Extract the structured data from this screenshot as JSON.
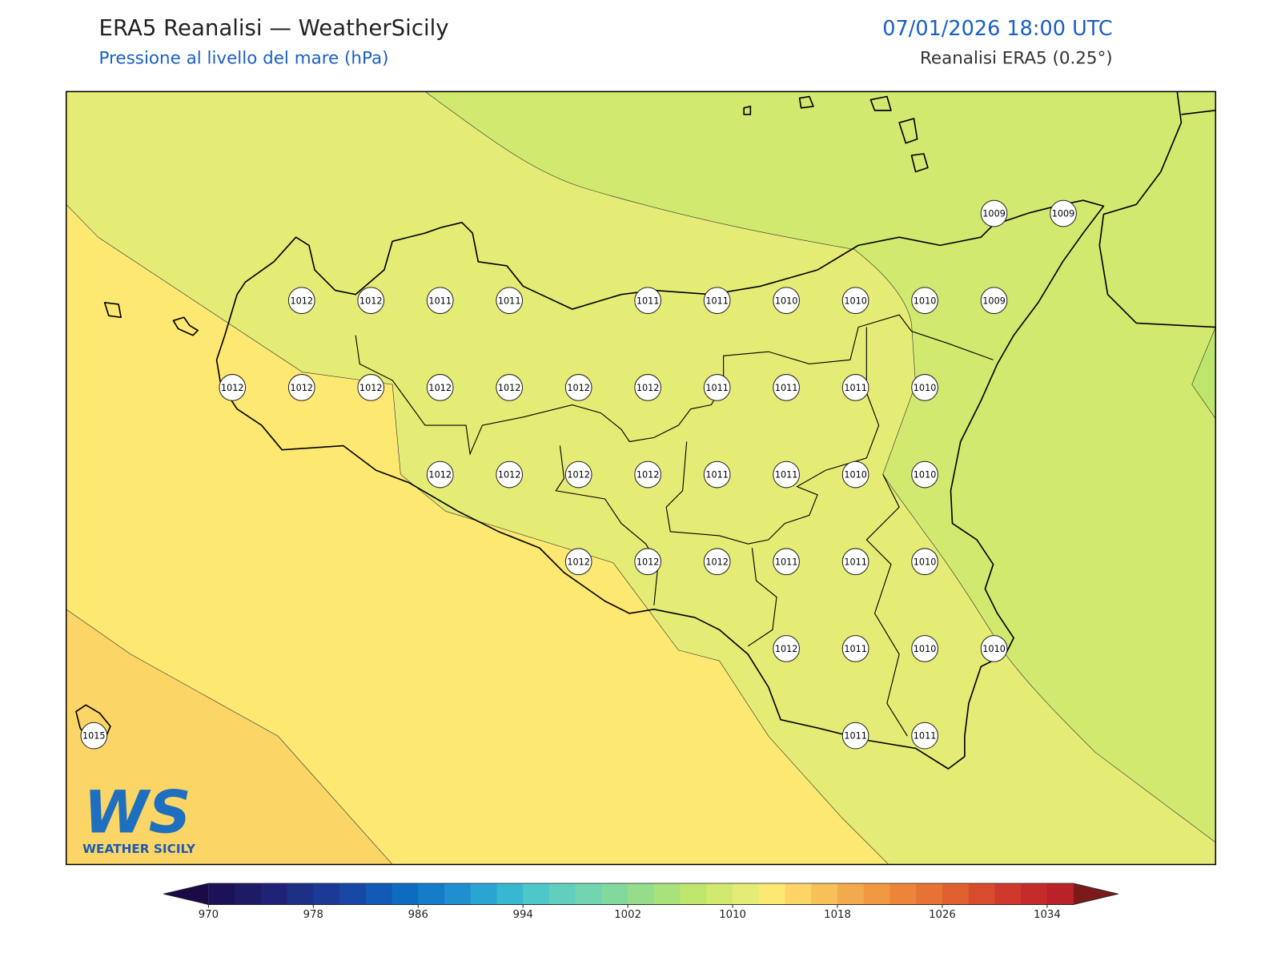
{
  "header": {
    "title": "ERA5 Reanalisi — WeatherSicily",
    "subtitle": "Pressione al livello del mare (hPa)",
    "datetime": "07/01/2026 18:00 UTC",
    "source": "Reanalisi ERA5 (0.25°)"
  },
  "logo": {
    "mark": "WS",
    "text": "WEATHER SICILY"
  },
  "map": {
    "xlim": [
      11.9,
      16.05
    ],
    "ylim": [
      36.38,
      38.6
    ],
    "points": [
      {
        "lon": 15.25,
        "lat": 38.25,
        "value": 1009
      },
      {
        "lon": 15.5,
        "lat": 38.25,
        "value": 1009
      },
      {
        "lon": 12.75,
        "lat": 38.0,
        "value": 1012
      },
      {
        "lon": 13.0,
        "lat": 38.0,
        "value": 1012
      },
      {
        "lon": 13.25,
        "lat": 38.0,
        "value": 1011
      },
      {
        "lon": 13.5,
        "lat": 38.0,
        "value": 1011
      },
      {
        "lon": 14.0,
        "lat": 38.0,
        "value": 1011
      },
      {
        "lon": 14.25,
        "lat": 38.0,
        "value": 1011
      },
      {
        "lon": 14.5,
        "lat": 38.0,
        "value": 1010
      },
      {
        "lon": 14.75,
        "lat": 38.0,
        "value": 1010
      },
      {
        "lon": 15.0,
        "lat": 38.0,
        "value": 1010
      },
      {
        "lon": 15.25,
        "lat": 38.0,
        "value": 1009
      },
      {
        "lon": 12.5,
        "lat": 37.75,
        "value": 1012
      },
      {
        "lon": 12.75,
        "lat": 37.75,
        "value": 1012
      },
      {
        "lon": 13.0,
        "lat": 37.75,
        "value": 1012
      },
      {
        "lon": 13.25,
        "lat": 37.75,
        "value": 1012
      },
      {
        "lon": 13.5,
        "lat": 37.75,
        "value": 1012
      },
      {
        "lon": 13.75,
        "lat": 37.75,
        "value": 1012
      },
      {
        "lon": 14.0,
        "lat": 37.75,
        "value": 1012
      },
      {
        "lon": 14.25,
        "lat": 37.75,
        "value": 1011
      },
      {
        "lon": 14.5,
        "lat": 37.75,
        "value": 1011
      },
      {
        "lon": 14.75,
        "lat": 37.75,
        "value": 1011
      },
      {
        "lon": 15.0,
        "lat": 37.75,
        "value": 1010
      },
      {
        "lon": 13.25,
        "lat": 37.5,
        "value": 1012
      },
      {
        "lon": 13.5,
        "lat": 37.5,
        "value": 1012
      },
      {
        "lon": 13.75,
        "lat": 37.5,
        "value": 1012
      },
      {
        "lon": 14.0,
        "lat": 37.5,
        "value": 1012
      },
      {
        "lon": 14.25,
        "lat": 37.5,
        "value": 1011
      },
      {
        "lon": 14.5,
        "lat": 37.5,
        "value": 1011
      },
      {
        "lon": 14.75,
        "lat": 37.5,
        "value": 1010
      },
      {
        "lon": 15.0,
        "lat": 37.5,
        "value": 1010
      },
      {
        "lon": 13.75,
        "lat": 37.25,
        "value": 1012
      },
      {
        "lon": 14.0,
        "lat": 37.25,
        "value": 1012
      },
      {
        "lon": 14.25,
        "lat": 37.25,
        "value": 1012
      },
      {
        "lon": 14.5,
        "lat": 37.25,
        "value": 1011
      },
      {
        "lon": 14.75,
        "lat": 37.25,
        "value": 1011
      },
      {
        "lon": 15.0,
        "lat": 37.25,
        "value": 1010
      },
      {
        "lon": 14.5,
        "lat": 37.0,
        "value": 1012
      },
      {
        "lon": 14.75,
        "lat": 37.0,
        "value": 1011
      },
      {
        "lon": 15.0,
        "lat": 37.0,
        "value": 1010
      },
      {
        "lon": 15.25,
        "lat": 37.0,
        "value": 1010
      },
      {
        "lon": 12.0,
        "lat": 36.75,
        "value": 1015
      },
      {
        "lon": 14.75,
        "lat": 36.75,
        "value": 1011
      },
      {
        "lon": 15.0,
        "lat": 36.75,
        "value": 1011
      }
    ]
  },
  "colorbar": {
    "lim": [
      970,
      1036
    ],
    "ticks": [
      970,
      978,
      986,
      994,
      1002,
      1010,
      1018,
      1026,
      1034
    ],
    "colors": [
      "#1c1257",
      "#1e1a66",
      "#1f2276",
      "#1d2e85",
      "#1b3a95",
      "#1748a5",
      "#115bb6",
      "#0d6cc1",
      "#147cc9",
      "#1f8fd0",
      "#2aa5d2",
      "#38b8d0",
      "#4dc7c8",
      "#62cfbe",
      "#72d4b0",
      "#82d99d",
      "#95dd8a",
      "#a9e27a",
      "#bee66c",
      "#d2e96f",
      "#e4ec75",
      "#fde872",
      "#fcd566",
      "#f8c058",
      "#f3aa4c",
      "#ef9840",
      "#ec853a",
      "#e77234",
      "#e0602f",
      "#d84c2d",
      "#cf392b",
      "#c42b2a",
      "#b82228"
    ],
    "extend_colors": [
      "#1a0a45",
      "#7a1a1a"
    ]
  }
}
